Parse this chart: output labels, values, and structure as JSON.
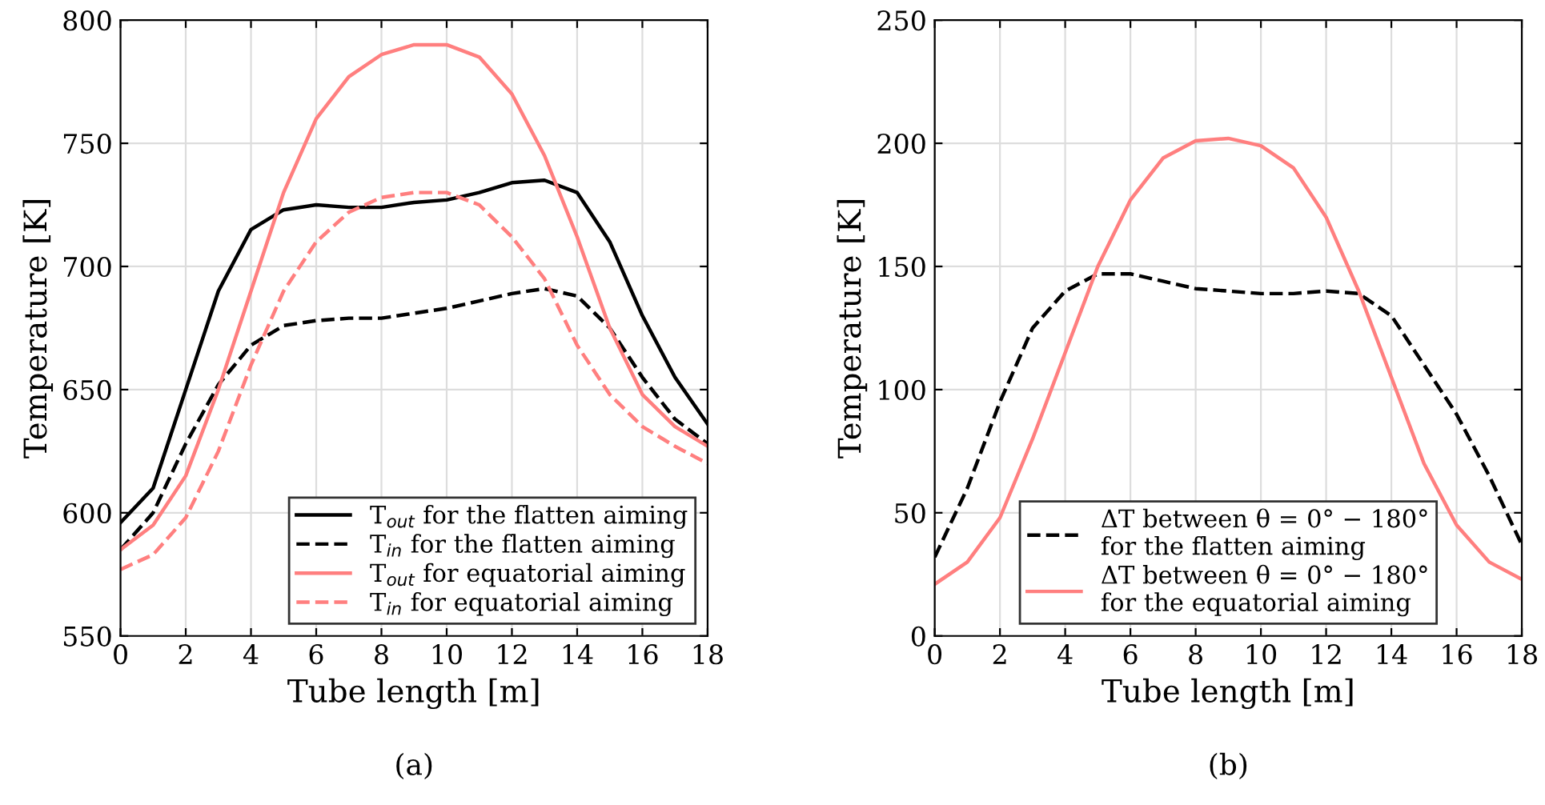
{
  "chart_data": [
    {
      "type": "line",
      "xlabel": "Tube length [m]",
      "ylabel": "Temperature [K]",
      "x": [
        0,
        1,
        2,
        3,
        4,
        5,
        6,
        7,
        8,
        9,
        10,
        11,
        12,
        13,
        14,
        15,
        16,
        17,
        18
      ],
      "xlim": [
        0,
        18
      ],
      "xticks": [
        0,
        2,
        4,
        6,
        8,
        10,
        12,
        14,
        16,
        18
      ],
      "ylim": [
        550,
        800
      ],
      "yticks": [
        550,
        600,
        650,
        700,
        750,
        800
      ],
      "grid": true,
      "legend": "bottom right",
      "annotations": [
        "(a)"
      ],
      "series": [
        {
          "name": "T$_{out}$ for the flatten aiming",
          "color": "#000000",
          "line_style": "solid",
          "values": [
            596,
            610,
            650,
            690,
            715,
            723,
            725,
            724,
            724,
            726,
            727,
            730,
            734,
            735,
            730,
            710,
            680,
            655,
            636
          ]
        },
        {
          "name": "T$_{in}$ for the flatten aiming",
          "color": "#000000",
          "line_style": "dashed",
          "values": [
            585,
            600,
            628,
            652,
            668,
            676,
            678,
            679,
            679,
            681,
            683,
            686,
            689,
            691,
            688,
            675,
            655,
            638,
            628
          ]
        },
        {
          "name": "T$_{out}$ for equatorial aiming",
          "color": "#ff7f7f",
          "line_style": "solid",
          "values": [
            585,
            595,
            615,
            650,
            690,
            730,
            760,
            777,
            786,
            790,
            790,
            785,
            770,
            745,
            712,
            675,
            648,
            635,
            627
          ]
        },
        {
          "name": "T$_{in}$ for equatorial aiming",
          "color": "#ff7f7f",
          "line_style": "dashed",
          "values": [
            577,
            583,
            598,
            625,
            660,
            690,
            710,
            722,
            728,
            730,
            730,
            725,
            712,
            695,
            668,
            648,
            635,
            627,
            620
          ]
        }
      ]
    },
    {
      "type": "line",
      "xlabel": "Tube length [m]",
      "ylabel": "Temperature [K]",
      "x": [
        0,
        1,
        2,
        3,
        4,
        5,
        6,
        7,
        8,
        9,
        10,
        11,
        12,
        13,
        14,
        15,
        16,
        17,
        18
      ],
      "xlim": [
        0,
        18
      ],
      "xticks": [
        0,
        2,
        4,
        6,
        8,
        10,
        12,
        14,
        16,
        18
      ],
      "ylim": [
        0,
        250
      ],
      "yticks": [
        0,
        50,
        100,
        150,
        200,
        250
      ],
      "grid": true,
      "legend": "bottom",
      "annotations": [
        "(b)"
      ],
      "series": [
        {
          "name": "ΔT between θ = 0° − 180°\nfor the flatten aiming",
          "color": "#000000",
          "line_style": "dashed",
          "values": [
            32,
            60,
            95,
            125,
            140,
            147,
            147,
            144,
            141,
            140,
            139,
            139,
            140,
            139,
            130,
            110,
            90,
            65,
            37
          ]
        },
        {
          "name": "ΔT between θ = 0° − 180°\nfor the equatorial aiming",
          "color": "#ff7f7f",
          "line_style": "solid",
          "values": [
            21,
            30,
            48,
            80,
            115,
            150,
            177,
            194,
            201,
            202,
            199,
            190,
            170,
            140,
            105,
            70,
            45,
            30,
            23
          ]
        }
      ]
    }
  ]
}
